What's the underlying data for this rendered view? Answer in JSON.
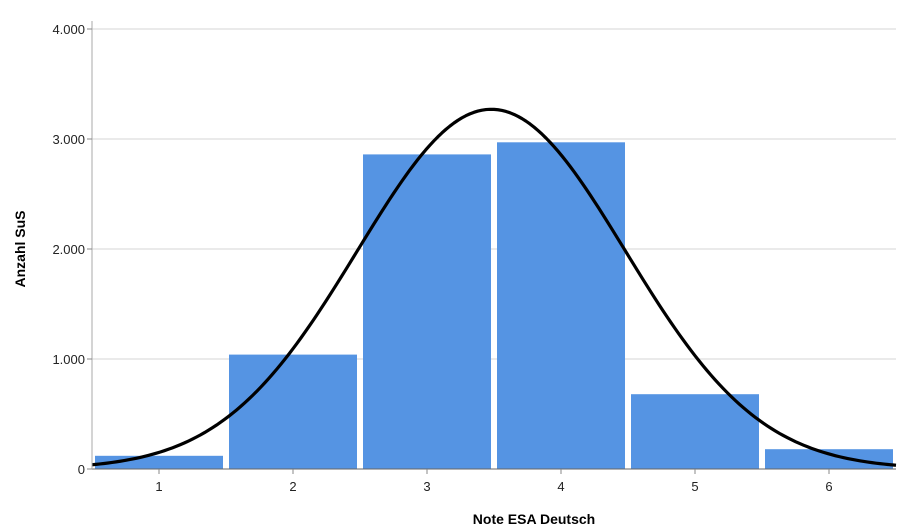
{
  "chart_data": {
    "type": "bar",
    "title": "",
    "xlabel": "Note ESA Deutsch",
    "ylabel": "Anzahl SuS",
    "categories": [
      "1",
      "2",
      "3",
      "4",
      "5",
      "6"
    ],
    "values": [
      120,
      1040,
      2860,
      2970,
      680,
      180
    ],
    "ylim": [
      0,
      4000
    ],
    "yticks": [
      0,
      1000,
      2000,
      3000,
      4000
    ],
    "ytick_labels": [
      "0",
      "1.000",
      "2.000",
      "3.000",
      "4.000"
    ],
    "grid": "horizontal",
    "bar_color": "#5594e3",
    "curve": {
      "type": "normal",
      "mean": 3.48,
      "sd": 1.0,
      "peak": 3270,
      "x_range": [
        0.5,
        6.5
      ],
      "color": "#000000"
    }
  }
}
